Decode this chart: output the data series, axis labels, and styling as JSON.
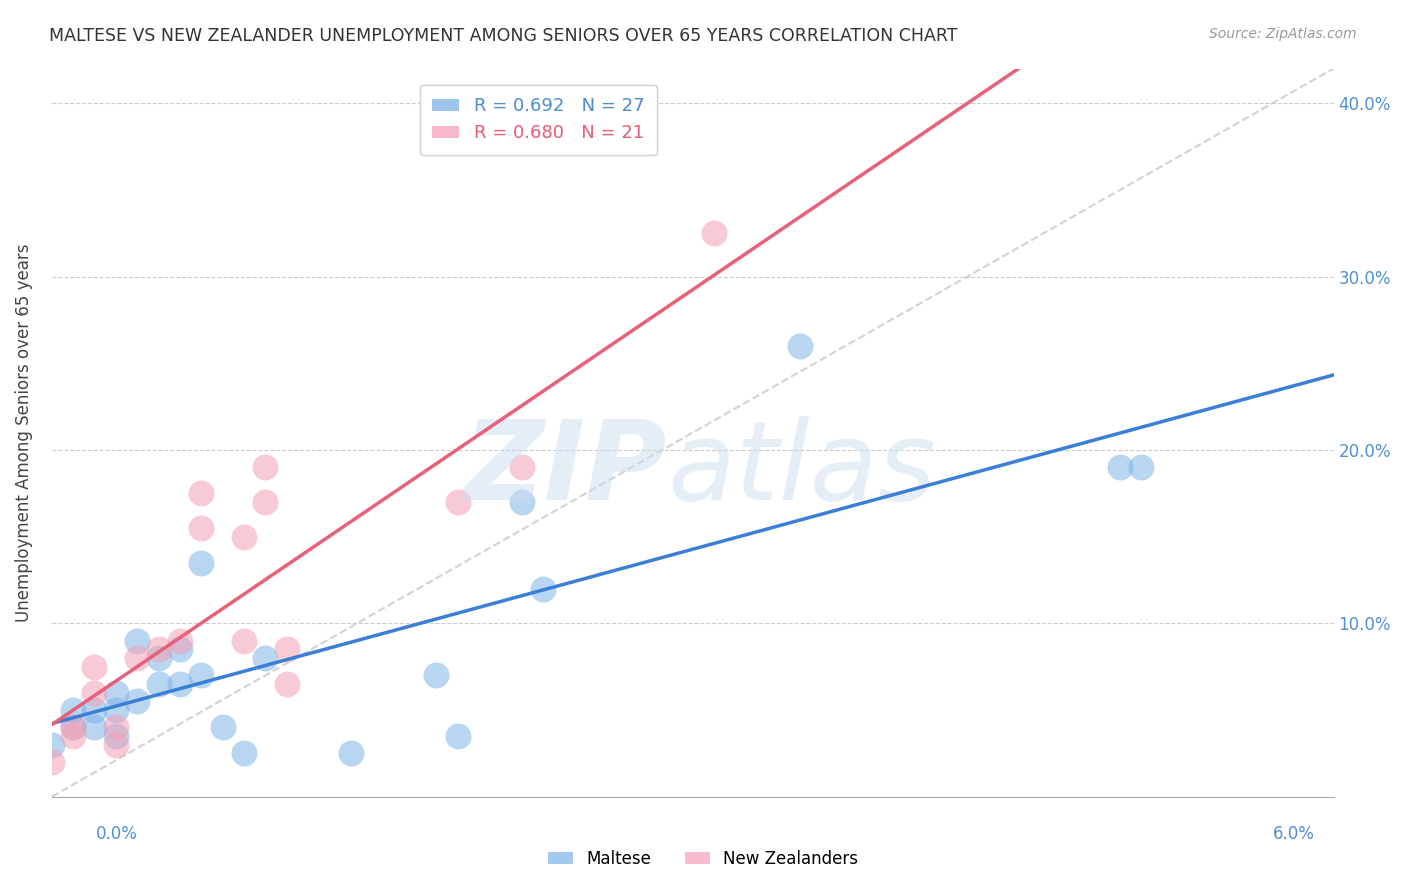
{
  "title": "MALTESE VS NEW ZEALANDER UNEMPLOYMENT AMONG SENIORS OVER 65 YEARS CORRELATION CHART",
  "source": "Source: ZipAtlas.com",
  "ylabel": "Unemployment Among Seniors over 65 years",
  "xlim": [
    0.0,
    0.06
  ],
  "ylim": [
    0.0,
    0.42
  ],
  "yticks": [
    0.0,
    0.1,
    0.2,
    0.3,
    0.4
  ],
  "ytick_labels": [
    "",
    "10.0%",
    "20.0%",
    "30.0%",
    "40.0%"
  ],
  "legend_maltese_R": "0.692",
  "legend_maltese_N": "27",
  "legend_nz_R": "0.680",
  "legend_nz_N": "21",
  "maltese_color": "#7eb3e8",
  "nz_color": "#f4a0b5",
  "maltese_line_color": "#3a7fd5",
  "nz_line_color": "#e8607a",
  "diagonal_color": "#c0c0c0",
  "maltese_x": [
    0.0,
    0.001,
    0.001,
    0.002,
    0.002,
    0.003,
    0.003,
    0.003,
    0.004,
    0.004,
    0.005,
    0.005,
    0.006,
    0.006,
    0.007,
    0.007,
    0.008,
    0.009,
    0.01,
    0.014,
    0.018,
    0.019,
    0.022,
    0.023,
    0.035,
    0.05,
    0.051
  ],
  "maltese_y": [
    0.03,
    0.04,
    0.05,
    0.04,
    0.05,
    0.035,
    0.05,
    0.06,
    0.055,
    0.09,
    0.065,
    0.08,
    0.065,
    0.085,
    0.07,
    0.135,
    0.04,
    0.025,
    0.08,
    0.025,
    0.07,
    0.035,
    0.17,
    0.12,
    0.26,
    0.19,
    0.19
  ],
  "nz_x": [
    0.0,
    0.001,
    0.001,
    0.002,
    0.002,
    0.003,
    0.003,
    0.004,
    0.005,
    0.006,
    0.007,
    0.007,
    0.009,
    0.009,
    0.01,
    0.011,
    0.011,
    0.019,
    0.022,
    0.031,
    0.01
  ],
  "nz_y": [
    0.02,
    0.035,
    0.04,
    0.06,
    0.075,
    0.04,
    0.03,
    0.08,
    0.085,
    0.09,
    0.155,
    0.175,
    0.15,
    0.09,
    0.17,
    0.065,
    0.085,
    0.17,
    0.19,
    0.325,
    0.19
  ]
}
